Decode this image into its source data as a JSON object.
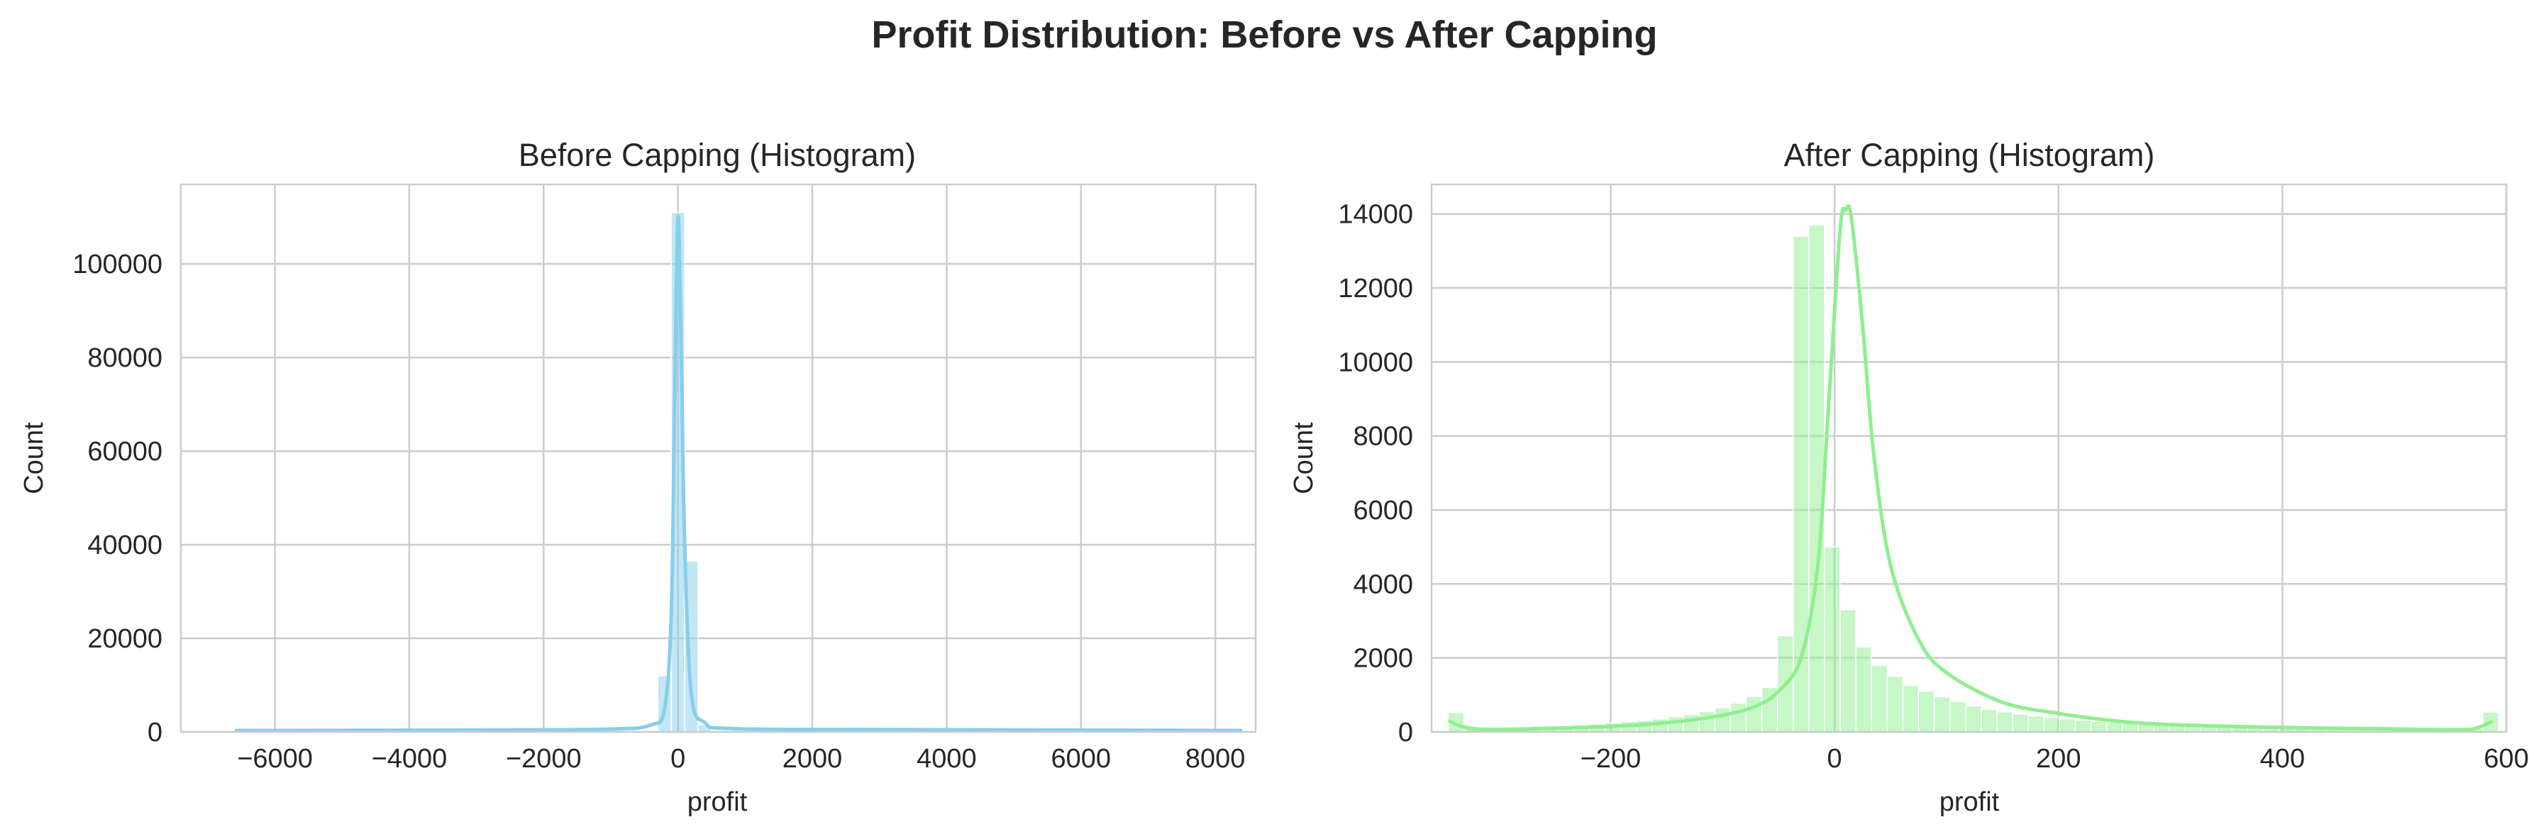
{
  "figure_title": "Profit Distribution: Before vs After Capping",
  "colors": {
    "before": "#87CEEB",
    "after": "#90EE90",
    "grid": "#cccccc",
    "spine": "#cccccc"
  },
  "chart_data": [
    {
      "type": "histogram",
      "title": "Before Capping (Histogram)",
      "xlabel": "profit",
      "ylabel": "Count",
      "xlim": [
        -7400,
        8600
      ],
      "ylim": [
        0,
        117000
      ],
      "xticks": [
        -6000,
        -4000,
        -2000,
        0,
        2000,
        4000,
        6000,
        8000
      ],
      "yticks": [
        0,
        20000,
        40000,
        60000,
        80000,
        100000
      ],
      "grid": true,
      "kde": true,
      "bins": [
        {
          "x0": -6600,
          "x1": -300,
          "count": 50
        },
        {
          "x0": -300,
          "x1": -100,
          "count": 12000
        },
        {
          "x0": -100,
          "x1": 100,
          "count": 111000
        },
        {
          "x0": 100,
          "x1": 300,
          "count": 36500
        },
        {
          "x0": 300,
          "x1": 500,
          "count": 1500
        },
        {
          "x0": 500,
          "x1": 8400,
          "count": 60
        }
      ],
      "kde_points": [
        [
          -6600,
          300
        ],
        [
          -3000,
          400
        ],
        [
          -1000,
          600
        ],
        [
          -400,
          1500
        ],
        [
          -200,
          5000
        ],
        [
          -100,
          25000
        ],
        [
          -50,
          70000
        ],
        [
          0,
          110000
        ],
        [
          50,
          80000
        ],
        [
          100,
          40000
        ],
        [
          200,
          8000
        ],
        [
          400,
          2000
        ],
        [
          800,
          700
        ],
        [
          3000,
          500
        ],
        [
          8400,
          300
        ]
      ]
    },
    {
      "type": "histogram",
      "title": "After Capping (Histogram)",
      "xlabel": "profit",
      "ylabel": "Count",
      "xlim": [
        -360,
        600
      ],
      "ylim": [
        0,
        14800
      ],
      "xticks": [
        -200,
        0,
        200,
        400,
        600
      ],
      "yticks": [
        0,
        2000,
        4000,
        6000,
        8000,
        10000,
        12000,
        14000
      ],
      "grid": true,
      "kde": true,
      "bin_width": 14,
      "bin_start": -345,
      "counts": [
        520,
        100,
        100,
        110,
        120,
        130,
        150,
        170,
        190,
        210,
        240,
        280,
        310,
        350,
        410,
        470,
        550,
        650,
        780,
        950,
        1200,
        2600,
        13400,
        13700,
        5000,
        3300,
        2300,
        1800,
        1500,
        1250,
        1100,
        950,
        820,
        700,
        610,
        540,
        480,
        430,
        390,
        350,
        320,
        290,
        270,
        250,
        230,
        210,
        190,
        170,
        160,
        150,
        140,
        130,
        120,
        110,
        100,
        100,
        100,
        90,
        90,
        90,
        90,
        90,
        90,
        90,
        90,
        90,
        530
      ],
      "kde_points": [
        [
          -345,
          300
        ],
        [
          -320,
          80
        ],
        [
          -250,
          100
        ],
        [
          -200,
          150
        ],
        [
          -150,
          250
        ],
        [
          -100,
          450
        ],
        [
          -70,
          700
        ],
        [
          -50,
          1100
        ],
        [
          -30,
          2000
        ],
        [
          -15,
          4500
        ],
        [
          -5,
          9000
        ],
        [
          5,
          13600
        ],
        [
          10,
          14100
        ],
        [
          15,
          13900
        ],
        [
          25,
          11000
        ],
        [
          35,
          7500
        ],
        [
          50,
          4500
        ],
        [
          75,
          2500
        ],
        [
          100,
          1600
        ],
        [
          150,
          800
        ],
        [
          200,
          500
        ],
        [
          250,
          300
        ],
        [
          300,
          200
        ],
        [
          400,
          120
        ],
        [
          500,
          80
        ],
        [
          560,
          60
        ],
        [
          575,
          120
        ],
        [
          588,
          300
        ]
      ]
    }
  ]
}
